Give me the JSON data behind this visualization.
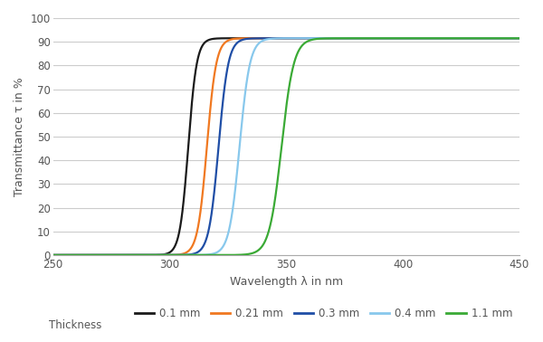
{
  "series": [
    {
      "label": "0.1 mm",
      "color": "#1a1a1a",
      "midpoint": 308,
      "steepness": 0.55,
      "max_val": 91.5,
      "lw": 1.6
    },
    {
      "label": "0.21 mm",
      "color": "#f07820",
      "midpoint": 316,
      "steepness": 0.5,
      "max_val": 91.5,
      "lw": 1.6
    },
    {
      "label": "0.3 mm",
      "color": "#1f4ea6",
      "midpoint": 321,
      "steepness": 0.48,
      "max_val": 91.5,
      "lw": 1.6
    },
    {
      "label": "0.4 mm",
      "color": "#88c8ec",
      "midpoint": 330,
      "steepness": 0.45,
      "max_val": 91.5,
      "lw": 1.6
    },
    {
      "label": "1.1 mm",
      "color": "#3aaa35",
      "midpoint": 348,
      "steepness": 0.38,
      "max_val": 91.5,
      "lw": 1.6
    }
  ],
  "xlabel": "Wavelength λ in nm",
  "ylabel": "Transmittance τ in %",
  "legend_prefix": "Thickness",
  "xlim": [
    250,
    450
  ],
  "ylim": [
    0,
    100
  ],
  "xticks": [
    250,
    300,
    350,
    400,
    450
  ],
  "yticks": [
    0,
    10,
    20,
    30,
    40,
    50,
    60,
    70,
    80,
    90,
    100
  ],
  "grid_color": "#cccccc",
  "bg_color": "#ffffff",
  "fig_bg_color": "#ffffff"
}
